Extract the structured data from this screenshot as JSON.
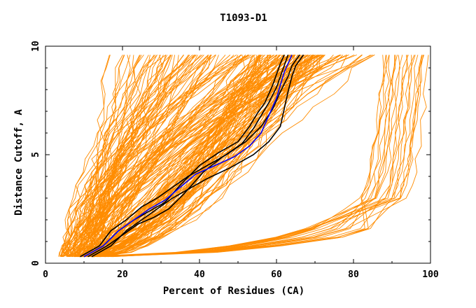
{
  "chart_data": {
    "type": "line",
    "title": "T1093-D1",
    "xlabel": "Percent of Residues (CA)",
    "ylabel": "Distance Cutoff, A",
    "xlim": [
      0,
      100
    ],
    "ylim": [
      0,
      10
    ],
    "x_ticks": [
      0,
      20,
      40,
      60,
      80,
      100
    ],
    "y_ticks": [
      0,
      5,
      10
    ],
    "grid": false,
    "legend": "none",
    "colors": {
      "models": "#ff8c00",
      "highlight_black": "#000000",
      "highlight_blue": "#0000ff",
      "axes": "#000000"
    },
    "series": [
      {
        "color": "#000000",
        "x": [
          10,
          15,
          19,
          23,
          27,
          31,
          35,
          40,
          45,
          50,
          53,
          55,
          57,
          59,
          60,
          61,
          62
        ],
        "y": [
          0.3,
          0.8,
          1.5,
          2.0,
          2.4,
          2.8,
          3.6,
          4.5,
          5.1,
          5.6,
          6.3,
          6.9,
          7.4,
          8.2,
          8.7,
          9.2,
          9.6
        ]
      },
      {
        "color": "#000000",
        "x": [
          11,
          16,
          20,
          24,
          28,
          32,
          36,
          41,
          46,
          51,
          54,
          56,
          58,
          60,
          61,
          62,
          63
        ],
        "y": [
          0.3,
          0.8,
          1.3,
          1.8,
          2.1,
          2.5,
          3.2,
          4.2,
          4.9,
          5.5,
          6.2,
          6.8,
          7.4,
          8.1,
          8.6,
          9.1,
          9.6
        ]
      },
      {
        "color": "#000000",
        "x": [
          9,
          14,
          17,
          21,
          25,
          29,
          33,
          37,
          42,
          47,
          52,
          56,
          59,
          61,
          63,
          64,
          66
        ],
        "y": [
          0.3,
          0.8,
          1.5,
          2.0,
          2.6,
          3.0,
          3.5,
          4.0,
          4.5,
          5.0,
          5.6,
          6.3,
          7.1,
          7.9,
          8.6,
          9.1,
          9.6
        ]
      },
      {
        "color": "#000000",
        "x": [
          12,
          17,
          21,
          25,
          29,
          33,
          37,
          42,
          48,
          54,
          58,
          61,
          62,
          63,
          64,
          65,
          67
        ],
        "y": [
          0.3,
          0.8,
          1.5,
          2.0,
          2.5,
          3.0,
          3.4,
          3.9,
          4.4,
          5.0,
          5.6,
          6.3,
          7.1,
          7.9,
          8.6,
          9.1,
          9.6
        ]
      },
      {
        "color": "#0000ff",
        "x": [
          10,
          15,
          19,
          23,
          27,
          31,
          35,
          39,
          44,
          49,
          53,
          56,
          58,
          60,
          61,
          62,
          63,
          64
        ],
        "y": [
          0.3,
          0.8,
          1.5,
          2.0,
          2.5,
          2.9,
          3.5,
          4.1,
          4.5,
          4.9,
          5.4,
          6.0,
          6.8,
          7.6,
          8.2,
          8.8,
          9.2,
          9.6
        ]
      }
    ]
  }
}
